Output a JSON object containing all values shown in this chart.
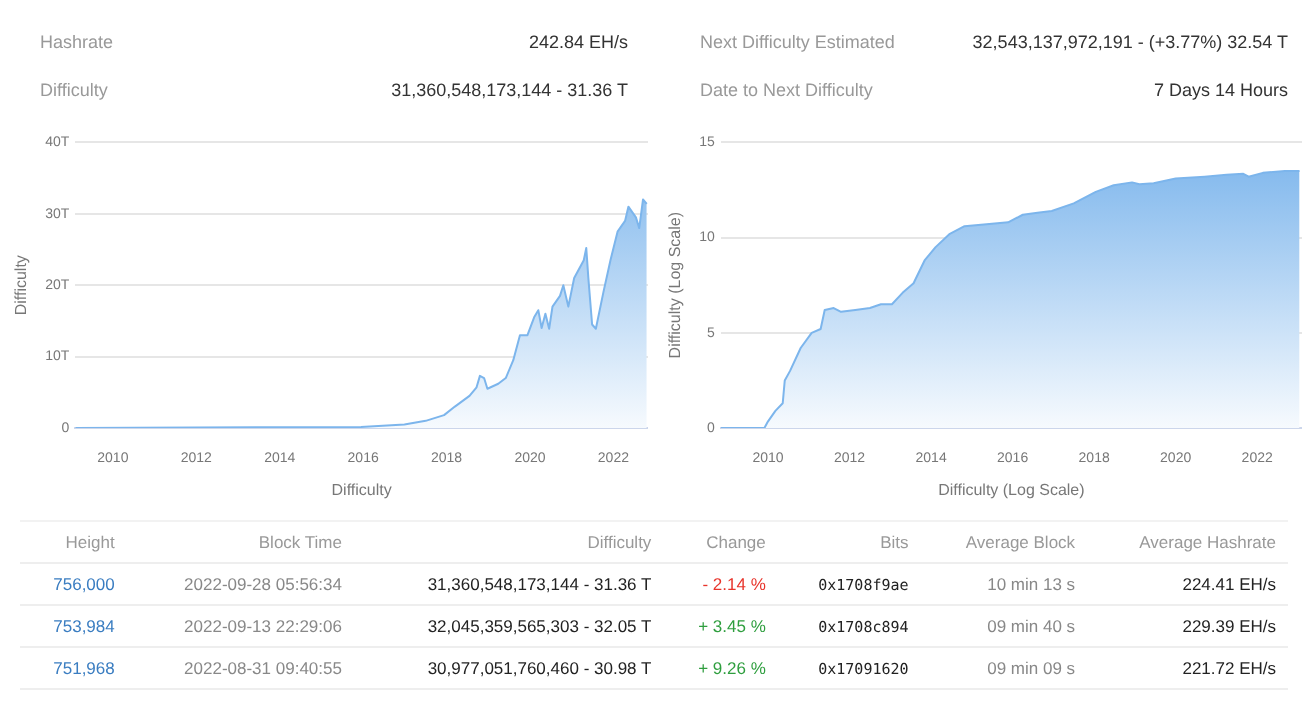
{
  "chart_data": [
    {
      "type": "other",
      "annotations": [
        "Hashrate",
        "242.84 EH/s",
        "Next Difficulty Estimated",
        "32,543,137,972,191 - (+3.77%) 32.54 T",
        "Difficulty",
        "31,360,548,173,144 - 31.36 T",
        "Date to Next Difficulty",
        "7 Days 14 Hours"
      ]
    },
    {
      "type": "area",
      "xlabel": "Difficulty",
      "ylabel": "Difficulty",
      "xlim": [
        2009.1,
        2022.83
      ],
      "xticks": [
        2010,
        2012,
        2014,
        2016,
        2018,
        2020,
        2022
      ],
      "ylim": [
        0,
        40
      ],
      "yticks": [
        0,
        {
          "value": 10,
          "label": "10T"
        },
        {
          "value": 20,
          "label": "20T"
        },
        {
          "value": 30,
          "label": "30T"
        },
        {
          "value": 40,
          "label": "40T"
        }
      ],
      "grid": "y",
      "x": [
        2009.1,
        2015.95,
        2016.99,
        2017.5,
        2017.94,
        2018.2,
        2018.55,
        2018.72,
        2018.8,
        2018.9,
        2018.98,
        2019.24,
        2019.42,
        2019.6,
        2019.76,
        2019.94,
        2020.1,
        2020.2,
        2020.28,
        2020.37,
        2020.46,
        2020.54,
        2020.72,
        2020.8,
        2020.92,
        2021.06,
        2021.29,
        2021.35,
        2021.4,
        2021.49,
        2021.58,
        2021.76,
        2021.93,
        2022.1,
        2022.28,
        2022.36,
        2022.54,
        2022.62,
        2022.71,
        2022.8
      ],
      "series": [
        {
          "color": "#7cb5ec",
          "values": [
            0,
            0.15,
            0.5,
            1.0,
            1.8,
            3.0,
            4.5,
            5.7,
            7.3,
            7.0,
            5.5,
            6.2,
            7.0,
            9.5,
            13.0,
            13.0,
            15.5,
            16.5,
            14.0,
            16.0,
            13.9,
            17.0,
            18.5,
            20.0,
            17.0,
            21.0,
            23.5,
            25.2,
            21.0,
            14.5,
            13.9,
            19.0,
            23.5,
            27.5,
            29.0,
            31.0,
            29.5,
            28.0,
            32.0,
            31.4
          ]
        }
      ]
    },
    {
      "type": "area",
      "xlabel": "Difficulty (Log Scale)",
      "ylabel": "Difficulty (Log Scale)",
      "xlim": [
        2008.84,
        2023.1
      ],
      "xticks": [
        2010,
        2012,
        2014,
        2016,
        2018,
        2020,
        2022
      ],
      "ylim": [
        0,
        15
      ],
      "yticks": [
        0,
        5,
        10,
        15
      ],
      "grid": "y",
      "x": [
        2008.84,
        2009.91,
        2010.0,
        2010.18,
        2010.36,
        2010.41,
        2010.54,
        2010.8,
        2011.07,
        2011.29,
        2011.39,
        2011.61,
        2011.79,
        2012.14,
        2012.5,
        2012.77,
        2013.04,
        2013.3,
        2013.57,
        2013.84,
        2014.11,
        2014.46,
        2014.82,
        2015.36,
        2015.89,
        2016.25,
        2016.61,
        2016.96,
        2017.5,
        2018.04,
        2018.48,
        2018.93,
        2019.11,
        2019.46,
        2020.0,
        2020.71,
        2021.25,
        2021.66,
        2021.79,
        2022.14,
        2022.68,
        2023.04
      ],
      "series": [
        {
          "color": "#7cb5ec",
          "values": [
            0,
            0,
            0.35,
            0.9,
            1.3,
            2.5,
            3.0,
            4.2,
            5.0,
            5.2,
            6.2,
            6.3,
            6.1,
            6.2,
            6.3,
            6.5,
            6.5,
            7.1,
            7.6,
            8.8,
            9.5,
            10.2,
            10.6,
            10.7,
            10.8,
            11.2,
            11.3,
            11.4,
            11.8,
            12.4,
            12.75,
            12.9,
            12.8,
            12.85,
            13.1,
            13.2,
            13.3,
            13.35,
            13.2,
            13.4,
            13.5,
            13.5
          ]
        }
      ]
    },
    {
      "type": "other",
      "categories": [
        "Height",
        "Block Time",
        "Difficulty",
        "Change",
        "Bits",
        "Average Block",
        "Average Hashrate"
      ],
      "cell_labels": [
        [
          "756,000",
          "2022-09-28 05:56:34",
          "31,360,548,173,144 - 31.36 T",
          "- 2.14 %",
          "0x1708f9ae",
          "10 min 13 s",
          "224.41 EH/s"
        ],
        [
          "753,984",
          "2022-09-13 22:29:06",
          "32,045,359,565,303 - 32.05 T",
          "+ 3.45 %",
          "0x1708c894",
          "09 min 40 s",
          "229.39 EH/s"
        ],
        [
          "751,968",
          "2022-08-31 09:40:55",
          "30,977,051,760,460 - 30.98 T",
          "+ 9.26 %",
          "0x17091620",
          "09 min 09 s",
          "221.72 EH/s"
        ]
      ],
      "colors": [
        "#e8342b",
        "#2e9e3e",
        "#2e9e3e"
      ]
    }
  ]
}
